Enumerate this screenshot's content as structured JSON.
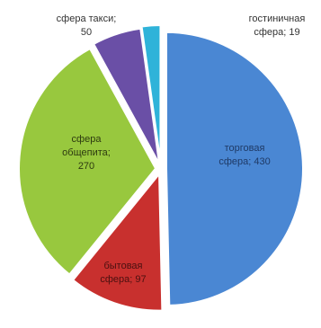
{
  "chart_data": {
    "type": "pie",
    "slices": [
      {
        "label_lines": [
          "торговая",
          "сфера; 430"
        ],
        "category": "торговая сфера",
        "value": 430,
        "color": "#4a87d3"
      },
      {
        "label_lines": [
          "бытовая",
          "сфера; 97"
        ],
        "category": "бытовая сфера",
        "value": 97,
        "color": "#c8302e"
      },
      {
        "label_lines": [
          "сфера",
          "общепита;",
          "270"
        ],
        "category": "сфера общепита",
        "value": 270,
        "color": "#98c83e"
      },
      {
        "label_lines": [
          "сфера такси;",
          "50"
        ],
        "category": "сфера такси",
        "value": 50,
        "color": "#6a4fa6"
      },
      {
        "label_lines": [
          "гостиничная",
          "сфера; 19"
        ],
        "category": "гостиничная сфера",
        "value": 19,
        "color": "#2fb3d9"
      }
    ],
    "start": "12 o'clock",
    "direction": "clockwise",
    "exploded": true
  }
}
